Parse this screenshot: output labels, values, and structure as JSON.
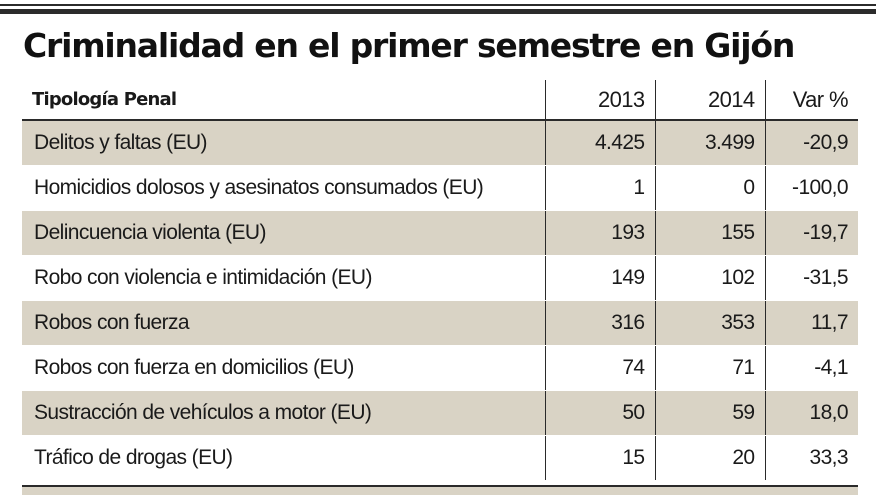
{
  "title": "Criminalidad en el primer semestre en Gijón",
  "colors": {
    "shaded_row": "#d9d3c5",
    "rule": "#2a2a2a"
  },
  "chart_data": {
    "type": "table",
    "title": "Criminalidad en el primer semestre en Gijón",
    "columns": [
      "Tipología Penal",
      "2013",
      "2014",
      "Var %"
    ],
    "rows": [
      [
        "Delitos y faltas (EU)",
        "4.425",
        "3.499",
        "-20,9"
      ],
      [
        "Homicidios dolosos y asesinatos consumados (EU)",
        "1",
        "0",
        "-100,0"
      ],
      [
        "Delincuencia violenta (EU)",
        "193",
        "155",
        "-19,7"
      ],
      [
        "Robo con violencia e intimidación (EU)",
        "149",
        "102",
        "-31,5"
      ],
      [
        "Robos con fuerza",
        "316",
        "353",
        "11,7"
      ],
      [
        "Robos con fuerza en domicilios (EU)",
        "74",
        "71",
        "-4,1"
      ],
      [
        "Sustracción de vehículos a motor (EU)",
        "50",
        "59",
        "18,0"
      ],
      [
        "Tráfico de drogas (EU)",
        "15",
        "20",
        "33,3"
      ]
    ]
  }
}
